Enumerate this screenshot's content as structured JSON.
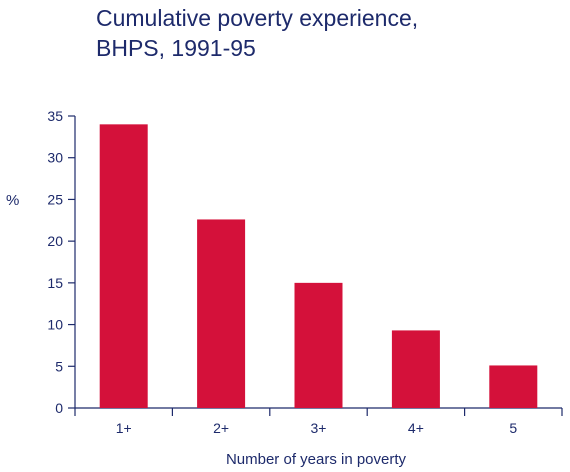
{
  "chart_data": {
    "type": "bar",
    "title_lines": [
      "Cumulative poverty experience,",
      "BHPS, 1991-95"
    ],
    "xlabel": "Number of years in poverty",
    "ylabel": "%",
    "categories": [
      "1+",
      "2+",
      "3+",
      "4+",
      "5"
    ],
    "values": [
      34,
      22.6,
      15,
      9.3,
      5.1
    ],
    "ylim": [
      0,
      35
    ],
    "yticks": [
      0,
      5,
      10,
      15,
      20,
      25,
      30,
      35
    ],
    "grid": false,
    "legend": "none",
    "colors": {
      "bar": "#d4113a",
      "axis": "#1d2a6b",
      "text": "#1d2a6b"
    }
  }
}
